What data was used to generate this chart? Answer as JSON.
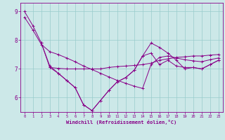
{
  "x": [
    0,
    1,
    2,
    3,
    4,
    5,
    6,
    7,
    8,
    9,
    10,
    11,
    12,
    13,
    14,
    15,
    16,
    17,
    18,
    19,
    20,
    21,
    22,
    23
  ],
  "line1": [
    9.0,
    8.5,
    7.9,
    7.1,
    6.85,
    6.6,
    6.35,
    5.75,
    5.55,
    5.9,
    6.25,
    6.55,
    6.7,
    6.95,
    7.45,
    7.55,
    7.15,
    7.3,
    7.1,
    7.05,
    7.05,
    7.0,
    7.15,
    7.3
  ],
  "line2": [
    null,
    null,
    7.9,
    7.05,
    6.85,
    6.6,
    6.35,
    5.75,
    5.55,
    5.9,
    6.25,
    6.55,
    6.7,
    6.95,
    7.45,
    7.9,
    7.75,
    7.55,
    7.3,
    7.0,
    7.05,
    7.0,
    7.15,
    7.3
  ],
  "line3": [
    null,
    null,
    null,
    7.05,
    7.02,
    7.0,
    7.0,
    7.0,
    7.0,
    7.0,
    7.05,
    7.08,
    7.1,
    7.12,
    7.15,
    7.2,
    7.3,
    7.35,
    7.4,
    7.42,
    7.45,
    7.45,
    7.48,
    7.5
  ],
  "line4": [
    8.8,
    8.35,
    7.85,
    7.6,
    7.5,
    7.38,
    7.25,
    7.1,
    6.98,
    6.85,
    6.72,
    6.6,
    6.5,
    6.4,
    6.32,
    7.15,
    7.4,
    7.45,
    7.38,
    7.32,
    7.28,
    7.25,
    7.32,
    7.38
  ],
  "bg_color": "#cce8e8",
  "line_color": "#880088",
  "grid_color": "#99cccc",
  "xlabel": "Windchill (Refroidissement éolien,°C)",
  "ylim": [
    5.5,
    9.3
  ],
  "xlim": [
    -0.5,
    23.5
  ],
  "yticks": [
    6,
    7,
    8,
    9
  ],
  "xticks": [
    0,
    1,
    2,
    3,
    4,
    5,
    6,
    7,
    8,
    9,
    10,
    11,
    12,
    13,
    14,
    15,
    16,
    17,
    18,
    19,
    20,
    21,
    22,
    23
  ]
}
